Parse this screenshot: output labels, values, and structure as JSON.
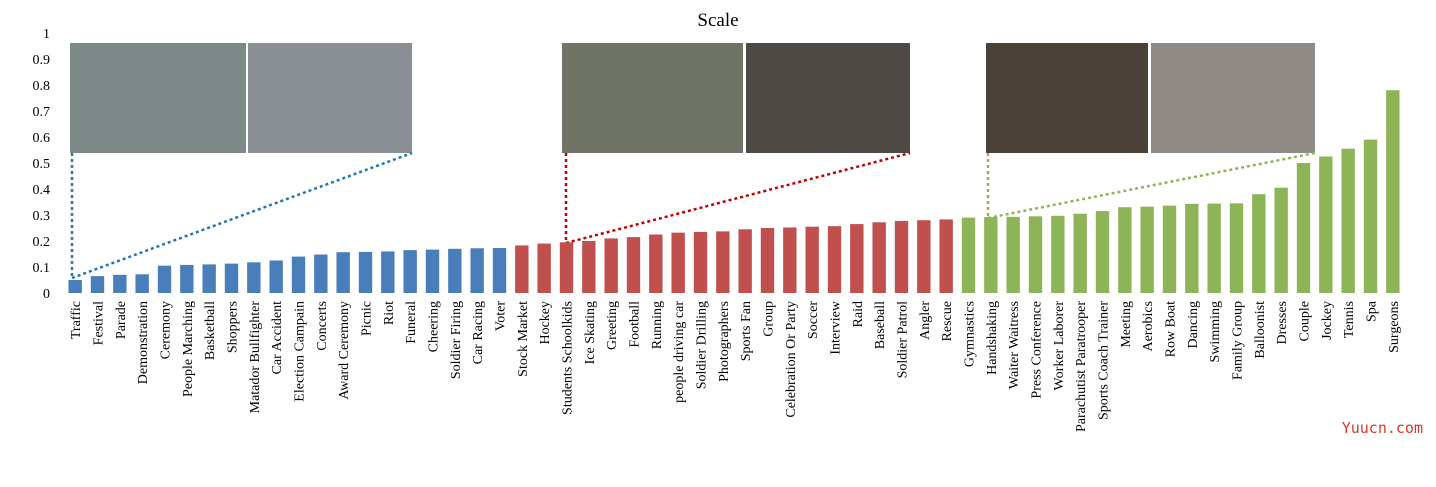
{
  "chart_data": {
    "type": "bar",
    "title": "Scale",
    "categories": [
      "Traffic",
      "Festival",
      "Parade",
      "Demonstration",
      "Ceremony",
      "People Marching",
      "Basketball",
      "Shoppers",
      "Matador Bullfighter",
      "Car Accident",
      "Election Campain",
      "Concerts",
      "Award Ceremony",
      "Picnic",
      "Riot",
      "Funeral",
      "Cheering",
      "Soldier Firing",
      "Car Racing",
      "Voter",
      "Stock Market",
      "Hockey",
      "Students Schoolkids",
      "Ice Skating",
      "Greeting",
      "Football",
      "Running",
      "people driving car",
      "Soldier Drilling",
      "Photographers",
      "Sports Fan",
      "Group",
      "Celebration Or Party",
      "Soccer",
      "Interview",
      "Raid",
      "Baseball",
      "Soldier Patrol",
      "Angler",
      "Rescue",
      "Gymnastics",
      "Handshaking",
      "Waiter Waitress",
      "Press Conference",
      "Worker Laborer",
      "Parachutist Paratrooper",
      "Sports Coach Trainer",
      "Meeting",
      "Aerobics",
      "Row Boat",
      "Dancing",
      "Swimming",
      "Family Group",
      "Balloonist",
      "Dresses",
      "Couple",
      "Jockey",
      "Tennis",
      "Spa",
      "Surgeons"
    ],
    "values": [
      0.05,
      0.065,
      0.07,
      0.072,
      0.105,
      0.108,
      0.11,
      0.113,
      0.118,
      0.125,
      0.14,
      0.148,
      0.157,
      0.158,
      0.16,
      0.165,
      0.167,
      0.17,
      0.172,
      0.173,
      0.183,
      0.19,
      0.195,
      0.2,
      0.21,
      0.215,
      0.225,
      0.232,
      0.235,
      0.237,
      0.245,
      0.25,
      0.252,
      0.255,
      0.257,
      0.265,
      0.272,
      0.277,
      0.28,
      0.283,
      0.29,
      0.292,
      0.293,
      0.295,
      0.297,
      0.305,
      0.315,
      0.33,
      0.332,
      0.336,
      0.343,
      0.344,
      0.345,
      0.38,
      0.405,
      0.5,
      0.525,
      0.555,
      0.59,
      0.78
    ],
    "colors": [
      "#4a7ebb",
      "#4a7ebb",
      "#4a7ebb",
      "#4a7ebb",
      "#4a7ebb",
      "#4a7ebb",
      "#4a7ebb",
      "#4a7ebb",
      "#4a7ebb",
      "#4a7ebb",
      "#4a7ebb",
      "#4a7ebb",
      "#4a7ebb",
      "#4a7ebb",
      "#4a7ebb",
      "#4a7ebb",
      "#4a7ebb",
      "#4a7ebb",
      "#4a7ebb",
      "#4a7ebb",
      "#c0504d",
      "#c0504d",
      "#c0504d",
      "#c0504d",
      "#c0504d",
      "#c0504d",
      "#c0504d",
      "#c0504d",
      "#c0504d",
      "#c0504d",
      "#c0504d",
      "#c0504d",
      "#c0504d",
      "#c0504d",
      "#c0504d",
      "#c0504d",
      "#c0504d",
      "#c0504d",
      "#c0504d",
      "#c0504d",
      "#8db457",
      "#8db457",
      "#8db457",
      "#8db457",
      "#8db457",
      "#8db457",
      "#8db457",
      "#8db457",
      "#8db457",
      "#8db457",
      "#8db457",
      "#8db457",
      "#8db457",
      "#8db457",
      "#8db457",
      "#8db457",
      "#8db457",
      "#8db457",
      "#8db457",
      "#8db457"
    ],
    "ylim": [
      0,
      1
    ],
    "yticks": [
      0,
      0.1,
      0.2,
      0.3,
      0.4,
      0.5,
      0.6,
      0.7,
      0.8,
      0.9,
      1
    ],
    "grid": false
  },
  "watermark": "Yuucn.com"
}
